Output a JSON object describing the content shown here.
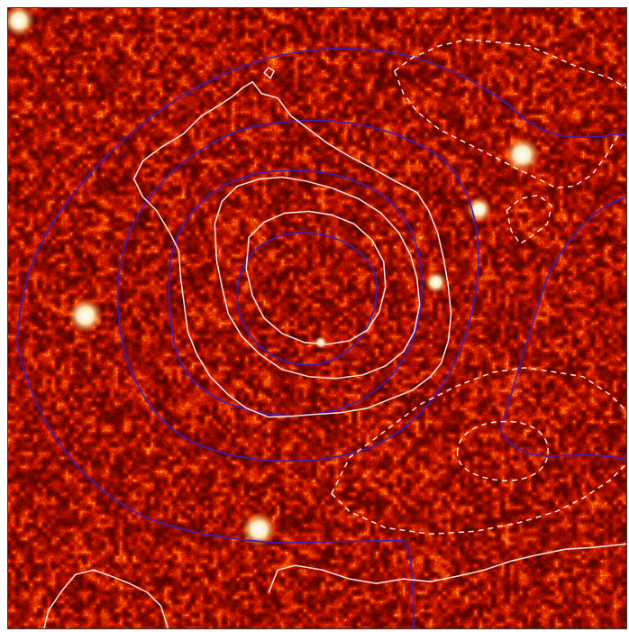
{
  "image": {
    "kind": "astronomical-map",
    "colormap": "heat",
    "colors": {
      "background_dark": "#5a0600",
      "background_mid": "#a81200",
      "hot": "#ffe8a0",
      "star": "#ffffff",
      "contour_white": "#f2e6e6",
      "contour_blue": "#3a1fb8",
      "frame": "#333333"
    },
    "contours": {
      "white_solid_levels": 4,
      "white_dashed_regions": 3,
      "blue_solid_levels": 4
    },
    "stars": 7
  }
}
